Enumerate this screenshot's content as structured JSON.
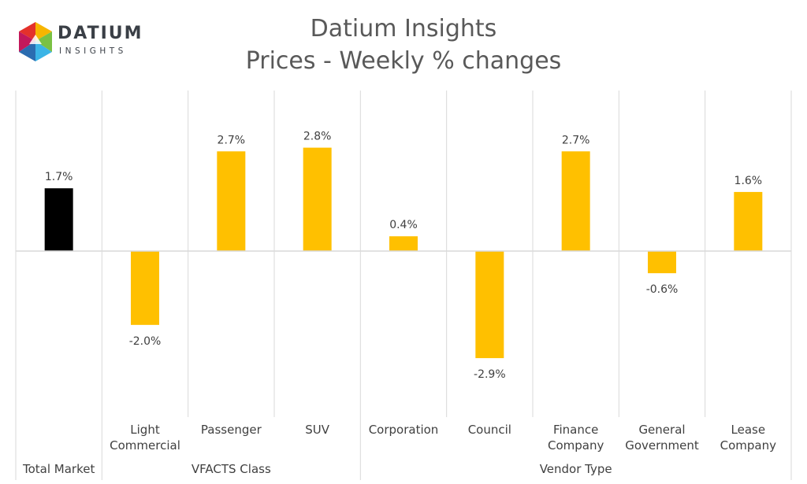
{
  "logo": {
    "word": "DATIUM",
    "sub": "INSIGHTS",
    "colors": [
      "#f7b500",
      "#e4312b",
      "#2b6cb0",
      "#3bb4e6",
      "#7ac143"
    ]
  },
  "chart_data": {
    "type": "bar",
    "title": "Datium Insights",
    "subtitle": "Prices - Weekly % changes",
    "categories": [
      "Total Market",
      "Light Commercial",
      "Passenger",
      "SUV",
      "Corporation",
      "Council",
      "Finance Company",
      "General Government",
      "Lease Company"
    ],
    "category_lines": [
      [
        "Total Market"
      ],
      [
        "Light",
        "Commercial"
      ],
      [
        "Passenger"
      ],
      [
        "SUV"
      ],
      [
        "Corporation"
      ],
      [
        "Council"
      ],
      [
        "Finance",
        "Company"
      ],
      [
        "General",
        "Government"
      ],
      [
        "Lease",
        "Company"
      ]
    ],
    "values": [
      1.7,
      -2.0,
      2.7,
      2.8,
      0.4,
      -2.9,
      2.7,
      -0.6,
      1.6
    ],
    "value_labels": [
      "1.7%",
      "-2.0%",
      "2.7%",
      "2.8%",
      "0.4%",
      "-2.9%",
      "2.7%",
      "-0.6%",
      "1.6%"
    ],
    "groups": [
      {
        "label": "",
        "categories": [
          "Total Market"
        ]
      },
      {
        "label": "VFACTS Class",
        "categories": [
          "Light Commercial",
          "Passenger",
          "SUV"
        ]
      },
      {
        "label": "Vendor Type",
        "categories": [
          "Corporation",
          "Council",
          "Finance Company",
          "General Government",
          "Lease Company"
        ]
      }
    ],
    "colors": {
      "highlight": "#000000",
      "default": "#ffc000",
      "axis": "#d9d9d9",
      "text": "#404040",
      "title": "#595959"
    },
    "highlight_index": 0,
    "ylim": [
      -4,
      4
    ],
    "grid": false,
    "legend": "none"
  }
}
